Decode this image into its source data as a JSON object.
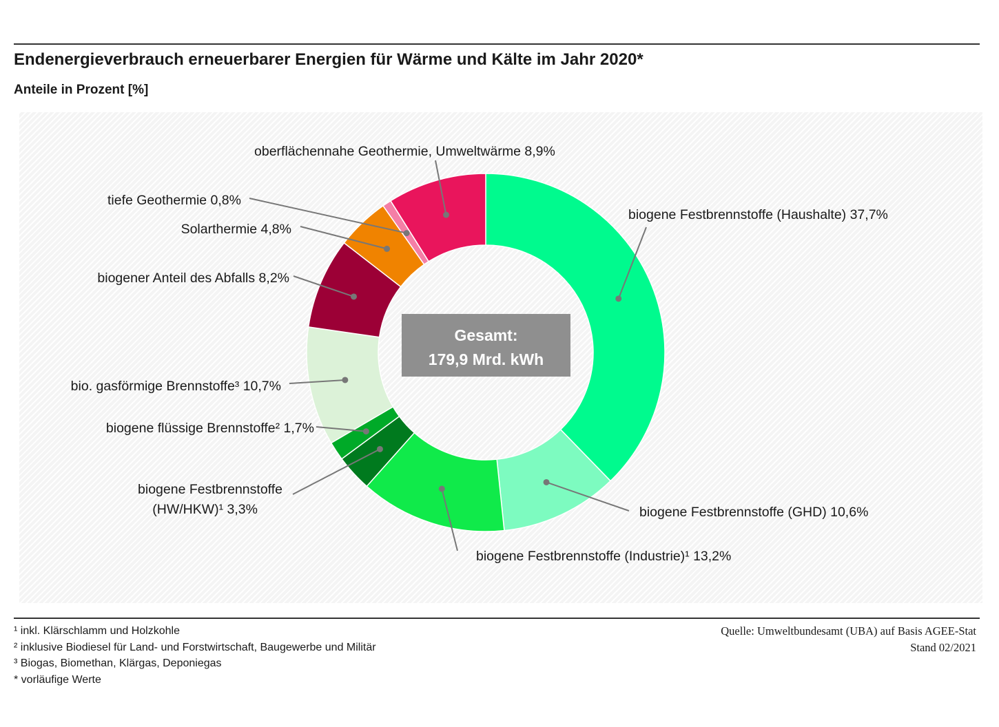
{
  "header": {
    "title": "Endenergieverbrauch erneuerbarer Energien für Wärme und Kälte im Jahr 2020*",
    "subtitle": "Anteile in Prozent [%]"
  },
  "center_label": {
    "line1": "Gesamt:",
    "line2": "179,9 Mrd. kWh"
  },
  "chart_data": {
    "type": "pie",
    "variant": "donut",
    "title": "Endenergieverbrauch erneuerbarer Energien für Wärme und Kälte im Jahr 2020*",
    "subtitle": "Anteile in Prozent [%]",
    "total": "179,9 Mrd. kWh",
    "slices": [
      {
        "label": "biogene Festbrennstoffe (Haushalte)",
        "value": 37.7,
        "display": "37,7%",
        "color": "#00fa8e"
      },
      {
        "label": "biogene Festbrennstoffe (GHD)",
        "value": 10.6,
        "display": "10,6%",
        "color": "#7dfbc0"
      },
      {
        "label": "biogene Festbrennstoffe (Industrie)¹",
        "value": 13.2,
        "display": "13,2%",
        "color": "#10ea4a"
      },
      {
        "label": "biogene Festbrennstoffe (HW/HKW)¹",
        "value": 3.3,
        "display": "3,3%",
        "color": "#007a1e"
      },
      {
        "label": "biogene flüssige Brennstoffe²",
        "value": 1.7,
        "display": "1,7%",
        "color": "#00aa28"
      },
      {
        "label": "bio. gasförmige Brennstoffe³",
        "value": 10.7,
        "display": "10,7%",
        "color": "#dcf2d8"
      },
      {
        "label": "biogener Anteil des Abfalls",
        "value": 8.2,
        "display": "8,2%",
        "color": "#9c0036"
      },
      {
        "label": "Solarthermie",
        "value": 4.8,
        "display": "4,8%",
        "color": "#f08300"
      },
      {
        "label": "tiefe Geothermie",
        "value": 0.8,
        "display": "0,8%",
        "color": "#f47fa6"
      },
      {
        "label": "oberflächennahe Geothermie, Umweltwärme",
        "value": 8.9,
        "display": "8,9%",
        "color": "#e9155c"
      }
    ]
  },
  "labels": {
    "haushalte": "biogene Festbrennstoffe  (Haushalte) 37,7%",
    "ghd": "biogene Festbrennstoffe  (GHD) 10,6%",
    "industrie": "biogene Festbrennstoffe  (Industrie)¹ 13,2%",
    "hw_line1": "biogene Festbrennstoffe",
    "hw_line2": "(HW/HKW)¹ 3,3%",
    "fluessig": "biogene flüssige Brennstoffe² 1,7%",
    "gas": "bio. gasförmige Brennstoffe³ 10,7%",
    "abfall": "biogener Anteil des Abfalls 8,2%",
    "solar": "Solarthermie 4,8%",
    "tief": "tiefe Geothermie 0,8%",
    "oberfl": "oberflächennahe Geothermie, Umweltwärme 8,9%"
  },
  "footnotes": [
    "¹  inkl. Klärschlamm und Holzkohle",
    "²  inklusive Biodiesel für Land- und Forstwirtschaft, Baugewerbe und Militär",
    "³  Biogas, Biomethan, Klärgas, Deponiegas",
    "* vorläufige Werte"
  ],
  "source": {
    "line1": "Quelle:  Umweltbundesamt (UBA) auf Basis AGEE-Stat",
    "line2": "Stand 02/2021"
  },
  "colors": {
    "leader_line": "#777777",
    "center_box": "#8f8f8f"
  }
}
